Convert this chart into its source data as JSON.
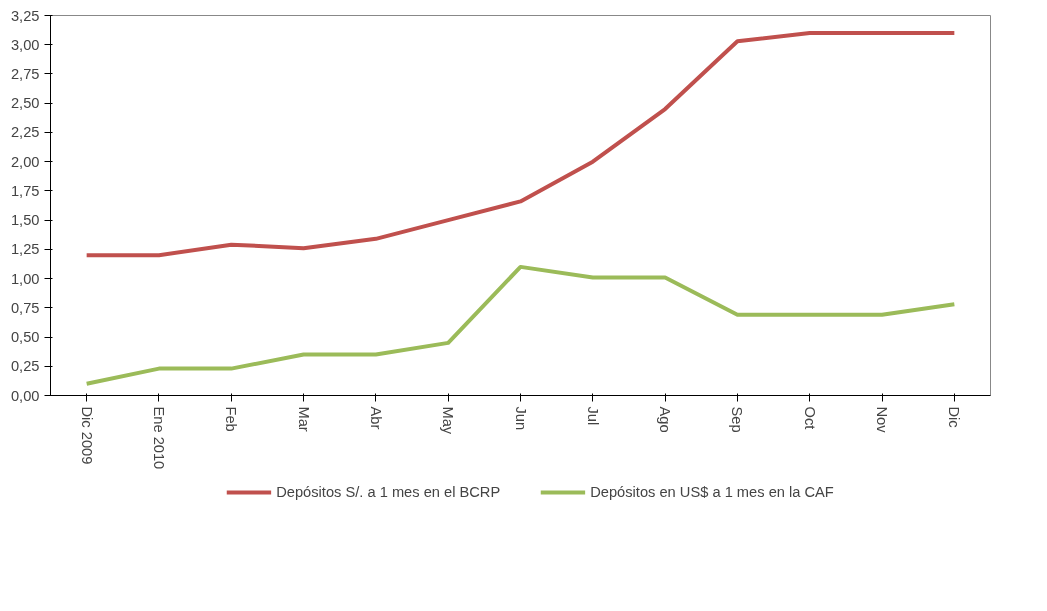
{
  "chart_data": {
    "type": "line",
    "categories": [
      "Dic 2009",
      "Ene 2010",
      "Feb",
      "Mar",
      "Abr",
      "May",
      "Jun",
      "Jul",
      "Ago",
      "Sep",
      "Oct",
      "Nov",
      "Dic"
    ],
    "series": [
      {
        "name": "Depósitos S/. a 1 mes en el BCRP",
        "color": "#c0504d",
        "values": [
          1.2,
          1.2,
          1.29,
          1.26,
          1.34,
          1.5,
          1.66,
          2.0,
          2.45,
          3.03,
          3.1,
          3.1,
          3.1
        ]
      },
      {
        "name": "Depósitos en US$ a 1 mes en la CAF",
        "color": "#9bbb59",
        "values": [
          0.1,
          0.23,
          0.23,
          0.35,
          0.35,
          0.45,
          1.1,
          1.01,
          1.01,
          0.69,
          0.69,
          0.69,
          0.78
        ]
      }
    ],
    "ylim": [
      0,
      3.25
    ],
    "yticks": [
      {
        "value": 0,
        "label": "0,00"
      },
      {
        "value": 0.25,
        "label": "0,25"
      },
      {
        "value": 0.5,
        "label": "0,50"
      },
      {
        "value": 0.75,
        "label": "0,75"
      },
      {
        "value": 1,
        "label": "1,00"
      },
      {
        "value": 1.25,
        "label": "1,25"
      },
      {
        "value": 1.5,
        "label": "1,50"
      },
      {
        "value": 1.75,
        "label": "1,75"
      },
      {
        "value": 2,
        "label": "2,00"
      },
      {
        "value": 2.25,
        "label": "2,25"
      },
      {
        "value": 2.5,
        "label": "2,50"
      },
      {
        "value": 2.75,
        "label": "2,75"
      },
      {
        "value": 3,
        "label": "3,00"
      },
      {
        "value": 3.25,
        "label": "3,25"
      }
    ],
    "grid": false,
    "legend": "bottom",
    "marker": "none",
    "line_style": "solid"
  }
}
